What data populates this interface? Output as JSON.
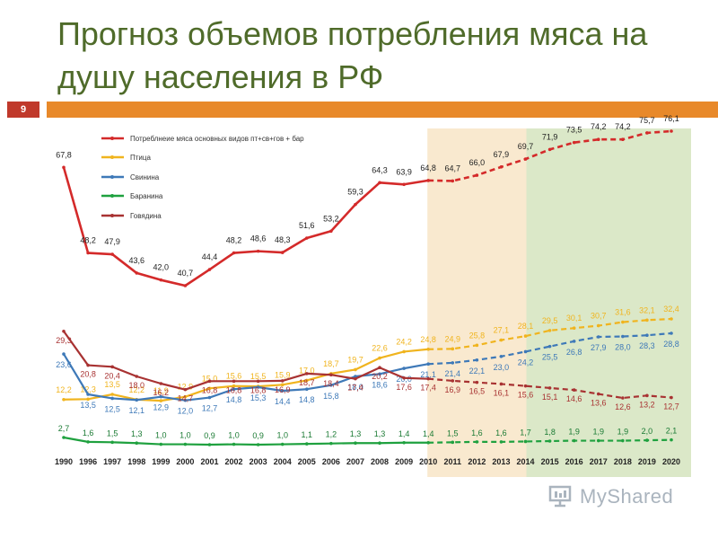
{
  "title": "Прогноз объемов потребления мяса на душу населения в РФ",
  "slide_number": "9",
  "watermark": "MyShared",
  "colors": {
    "title": "#4f6b2a",
    "accent_bar": "#e8892a",
    "badge": "#c0392b",
    "forecast_near": "#f9e9cf",
    "forecast_far": "#dbe8c8"
  },
  "chart_data": {
    "type": "line",
    "x": [
      "1990",
      "1996",
      "1997",
      "1998",
      "1999",
      "2000",
      "2001",
      "2002",
      "2003",
      "2004",
      "2005",
      "2006",
      "2007",
      "2008",
      "2009",
      "2010",
      "2011",
      "2012",
      "2013",
      "2014",
      "2015",
      "2016",
      "2017",
      "2018",
      "2019",
      "2020"
    ],
    "forecast_from": "2010",
    "grid": false,
    "legend_position": "top-left",
    "series": [
      {
        "name": "Потреблнеие мяса основных видов пт+св+гов + бар",
        "color": "#d42a2a",
        "values": [
          67.8,
          48.2,
          47.9,
          43.6,
          42.0,
          40.7,
          44.4,
          48.2,
          48.6,
          48.3,
          51.6,
          53.2,
          59.3,
          64.3,
          63.9,
          64.8,
          64.7,
          66.0,
          67.9,
          69.7,
          71.9,
          73.5,
          74.2,
          74.2,
          75.7,
          76.1
        ],
        "labels": [
          "67,8",
          "48,2",
          "47,9",
          "43,6",
          "42,0",
          "40,7",
          "44,4",
          "48,2",
          "48,6",
          "48,3",
          "51,6",
          "53,2",
          "59,3",
          "64,3",
          "63,9",
          "64,8",
          "64,7",
          "66,0",
          "67,9",
          "69,7",
          "71,9",
          "73,5",
          "74,2",
          "74,2",
          "75,7",
          "76,1"
        ]
      },
      {
        "name": "Птица",
        "color": "#f0b41e",
        "values": [
          12.2,
          12.3,
          13.5,
          12.2,
          11.9,
          12.9,
          15.0,
          15.6,
          15.5,
          15.9,
          17.0,
          18.7,
          19.7,
          22.6,
          24.2,
          24.8,
          24.9,
          25.8,
          27.1,
          28.1,
          29.5,
          30.1,
          30.7,
          31.6,
          32.1,
          32.4
        ],
        "labels": [
          "12,2",
          "12,3",
          "13,5",
          "12,2",
          "11,9",
          "12,9",
          "15,0",
          "15,6",
          "15,5",
          "15,9",
          "17,0",
          "18,7",
          "19,7",
          "22,6",
          "24,2",
          "24,8",
          "24,9",
          "25,8",
          "27,1",
          "28,1",
          "29,5",
          "30,1",
          "30,7",
          "31,6",
          "32,1",
          "32,4"
        ]
      },
      {
        "name": "Свинина",
        "color": "#3e79b8",
        "values": [
          23.6,
          13.5,
          12.5,
          12.1,
          12.9,
          12.0,
          12.7,
          14.8,
          15.3,
          14.4,
          14.8,
          15.8,
          18.0,
          18.6,
          20.0,
          21.1,
          21.4,
          22.1,
          23.0,
          24.2,
          25.5,
          26.8,
          27.9,
          28.0,
          28.3,
          28.8
        ],
        "labels": [
          "23,6",
          "13,5",
          "12,5",
          "12,1",
          "12,9",
          "12,0",
          "12,7",
          "14,8",
          "15,3",
          "14,4",
          "14,8",
          "15,8",
          "18,0",
          "18,6",
          "20,0",
          "21,1",
          "21,4",
          "22,1",
          "23,0",
          "24,2",
          "25,5",
          "26,8",
          "27,9",
          "28,0",
          "28,3",
          "28,8"
        ]
      },
      {
        "name": "Баранина",
        "color": "#1fa13f",
        "values": [
          2.7,
          1.6,
          1.5,
          1.3,
          1.0,
          1.0,
          0.9,
          1.0,
          0.9,
          1.0,
          1.1,
          1.2,
          1.3,
          1.3,
          1.4,
          1.4,
          1.5,
          1.6,
          1.6,
          1.7,
          1.8,
          1.9,
          1.9,
          1.9,
          2.0,
          2.1
        ],
        "labels": [
          "2,7",
          "1,6",
          "1,5",
          "1,3",
          "1,0",
          "1,0",
          "0,9",
          "1,0",
          "0,9",
          "1,0",
          "1,1",
          "1,2",
          "1,3",
          "1,3",
          "1,4",
          "1,4",
          "1,5",
          "1,6",
          "1,6",
          "1,7",
          "1,8",
          "1,9",
          "1,9",
          "1,9",
          "2,0",
          "2,1"
        ]
      },
      {
        "name": "Говядина",
        "color": "#a83232",
        "values": [
          29.3,
          20.8,
          20.4,
          18.0,
          16.2,
          14.7,
          16.8,
          16.8,
          16.8,
          16.9,
          18.7,
          18.4,
          17.4,
          20.2,
          17.6,
          17.4,
          16.9,
          16.5,
          16.1,
          15.6,
          15.1,
          14.6,
          13.6,
          12.6,
          13.2,
          12.7
        ],
        "labels": [
          "29,3",
          "20,8",
          "20,4",
          "18,0",
          "16,2",
          "14,7",
          "16,8",
          "16,8",
          "16,8",
          "16,9",
          "18,7",
          "18,4",
          "17,4",
          "20,2",
          "17,6",
          "17,4",
          "16,9",
          "16,5",
          "16,1",
          "15,6",
          "15,1",
          "14,6",
          "13,6",
          "12,6",
          "13,2",
          "12,7"
        ]
      }
    ]
  }
}
